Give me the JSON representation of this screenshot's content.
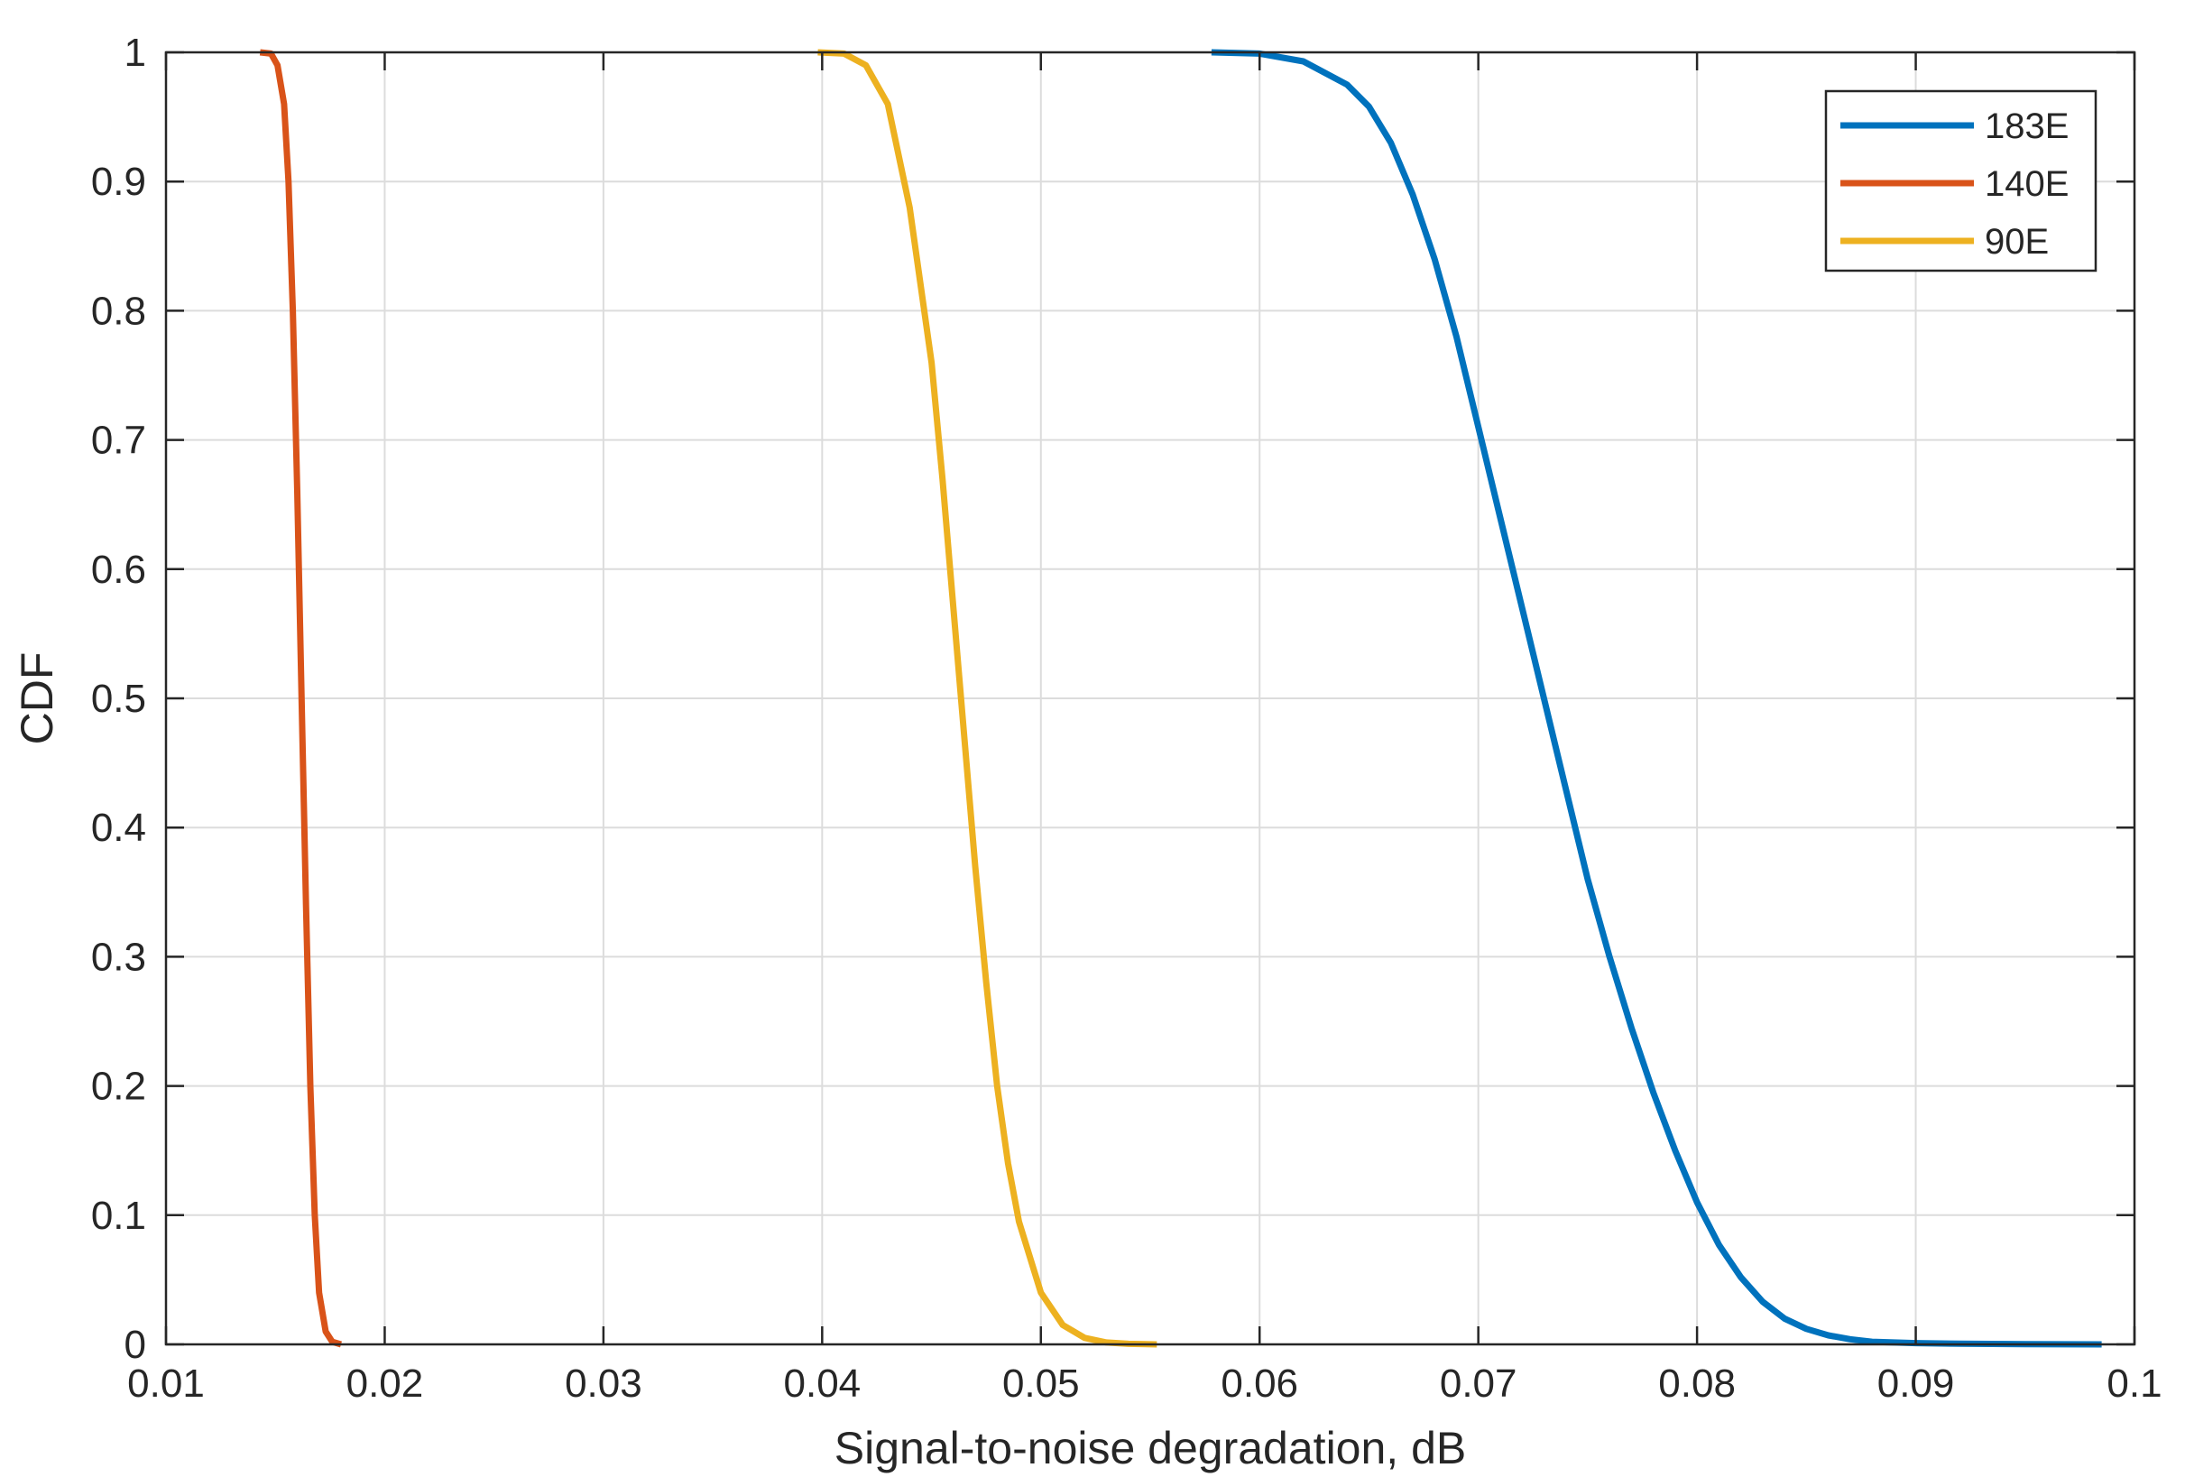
{
  "chart_data": {
    "type": "line",
    "title": "",
    "xlabel": "Signal-to-noise degradation, dB",
    "ylabel": "CDF",
    "xlim": [
      0.01,
      0.1
    ],
    "ylim": [
      0,
      1
    ],
    "xticks": [
      0.01,
      0.02,
      0.03,
      0.04,
      0.05,
      0.06,
      0.07,
      0.08,
      0.09,
      0.1
    ],
    "xtick_labels": [
      "0.01",
      "0.02",
      "0.03",
      "0.04",
      "0.05",
      "0.06",
      "0.07",
      "0.08",
      "0.09",
      "0.1"
    ],
    "yticks": [
      0,
      0.1,
      0.2,
      0.3,
      0.4,
      0.5,
      0.6,
      0.7,
      0.8,
      0.9,
      1
    ],
    "ytick_labels": [
      "0",
      "0.1",
      "0.2",
      "0.3",
      "0.4",
      "0.5",
      "0.6",
      "0.7",
      "0.8",
      "0.9",
      "1"
    ],
    "grid": true,
    "legend_position": "top-right",
    "series": [
      {
        "name": "183E",
        "color": "#0072BD",
        "x": [
          0.0578,
          0.06,
          0.062,
          0.064,
          0.065,
          0.066,
          0.067,
          0.068,
          0.069,
          0.07,
          0.071,
          0.072,
          0.073,
          0.074,
          0.075,
          0.076,
          0.077,
          0.078,
          0.079,
          0.08,
          0.081,
          0.082,
          0.083,
          0.084,
          0.085,
          0.086,
          0.087,
          0.088,
          0.09,
          0.092,
          0.095,
          0.0985
        ],
        "y": [
          1.0,
          0.999,
          0.993,
          0.975,
          0.958,
          0.93,
          0.89,
          0.84,
          0.78,
          0.71,
          0.64,
          0.57,
          0.5,
          0.43,
          0.36,
          0.3,
          0.245,
          0.195,
          0.15,
          0.11,
          0.077,
          0.052,
          0.033,
          0.02,
          0.012,
          0.007,
          0.004,
          0.002,
          0.001,
          0.0005,
          0.0002,
          0.0
        ]
      },
      {
        "name": "140E",
        "color": "#D95319",
        "x": [
          0.0143,
          0.0148,
          0.0151,
          0.0154,
          0.0156,
          0.0158,
          0.016,
          0.0162,
          0.0164,
          0.0166,
          0.0168,
          0.017,
          0.0173,
          0.0176,
          0.018
        ],
        "y": [
          1.0,
          0.999,
          0.99,
          0.96,
          0.9,
          0.8,
          0.66,
          0.5,
          0.34,
          0.2,
          0.1,
          0.04,
          0.01,
          0.002,
          0.0
        ]
      },
      {
        "name": "90E",
        "color": "#EDB120",
        "x": [
          0.0398,
          0.041,
          0.042,
          0.043,
          0.044,
          0.045,
          0.0455,
          0.046,
          0.0465,
          0.047,
          0.0475,
          0.048,
          0.0485,
          0.049,
          0.05,
          0.051,
          0.052,
          0.053,
          0.054,
          0.0553
        ],
        "y": [
          1.0,
          0.999,
          0.99,
          0.96,
          0.88,
          0.76,
          0.67,
          0.57,
          0.47,
          0.37,
          0.28,
          0.2,
          0.14,
          0.095,
          0.04,
          0.015,
          0.005,
          0.0015,
          0.0004,
          0.0
        ]
      }
    ]
  }
}
